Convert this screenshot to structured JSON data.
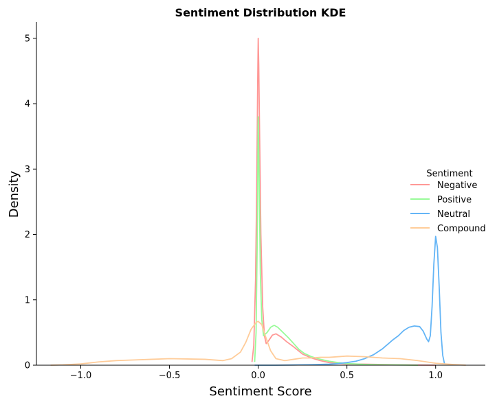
{
  "chart_data": {
    "type": "line",
    "title": "Sentiment Distribution KDE",
    "xlabel": "Sentiment Score",
    "ylabel": "Density",
    "xlim": [
      -1.25,
      1.28
    ],
    "ylim": [
      0,
      5.25
    ],
    "xticks": [
      -1.0,
      -0.5,
      0.0,
      0.5,
      1.0
    ],
    "xtick_labels": [
      "−1.0",
      "−0.5",
      "0.0",
      "0.5",
      "1.0"
    ],
    "yticks": [
      0,
      1,
      2,
      3,
      4,
      5
    ],
    "ytick_labels": [
      "0",
      "1",
      "2",
      "3",
      "4",
      "5"
    ],
    "grid": false,
    "legend": {
      "title": "Sentiment",
      "placement": "right"
    },
    "series": [
      {
        "name": "Negative",
        "color": "#ff9896",
        "points": [
          [
            -0.035,
            0.05
          ],
          [
            -0.025,
            0.3
          ],
          [
            -0.015,
            1.3
          ],
          [
            -0.008,
            2.8
          ],
          [
            -0.003,
            4.3
          ],
          [
            0.0,
            5.0
          ],
          [
            0.003,
            4.6
          ],
          [
            0.008,
            3.5
          ],
          [
            0.015,
            2.0
          ],
          [
            0.025,
            0.9
          ],
          [
            0.035,
            0.45
          ],
          [
            0.045,
            0.33
          ],
          [
            0.06,
            0.38
          ],
          [
            0.08,
            0.46
          ],
          [
            0.1,
            0.48
          ],
          [
            0.13,
            0.43
          ],
          [
            0.16,
            0.36
          ],
          [
            0.2,
            0.28
          ],
          [
            0.25,
            0.17
          ],
          [
            0.3,
            0.11
          ],
          [
            0.35,
            0.07
          ],
          [
            0.4,
            0.04
          ],
          [
            0.5,
            0.02
          ],
          [
            0.6,
            0.015
          ],
          [
            0.7,
            0.01
          ],
          [
            0.8,
            0.005
          ],
          [
            0.9,
            0.002
          ],
          [
            1.0,
            0.0
          ]
        ]
      },
      {
        "name": "Positive",
        "color": "#98fb98",
        "points": [
          [
            -0.02,
            0.05
          ],
          [
            -0.012,
            0.5
          ],
          [
            -0.005,
            2.0
          ],
          [
            0.0,
            3.8
          ],
          [
            0.005,
            2.9
          ],
          [
            0.012,
            1.4
          ],
          [
            0.02,
            0.7
          ],
          [
            0.03,
            0.45
          ],
          [
            0.05,
            0.5
          ],
          [
            0.07,
            0.58
          ],
          [
            0.09,
            0.61
          ],
          [
            0.11,
            0.58
          ],
          [
            0.14,
            0.5
          ],
          [
            0.17,
            0.42
          ],
          [
            0.2,
            0.33
          ],
          [
            0.23,
            0.24
          ],
          [
            0.26,
            0.18
          ],
          [
            0.3,
            0.13
          ],
          [
            0.35,
            0.09
          ],
          [
            0.4,
            0.06
          ],
          [
            0.45,
            0.04
          ],
          [
            0.5,
            0.025
          ],
          [
            0.6,
            0.012
          ],
          [
            0.7,
            0.006
          ],
          [
            0.8,
            0.003
          ],
          [
            0.9,
            0.0
          ]
        ]
      },
      {
        "name": "Neutral",
        "color": "#64b5f6",
        "points": [
          [
            -0.02,
            0.0
          ],
          [
            0.1,
            0.0
          ],
          [
            0.2,
            0.003
          ],
          [
            0.3,
            0.008
          ],
          [
            0.4,
            0.015
          ],
          [
            0.45,
            0.025
          ],
          [
            0.5,
            0.04
          ],
          [
            0.55,
            0.06
          ],
          [
            0.6,
            0.1
          ],
          [
            0.65,
            0.16
          ],
          [
            0.7,
            0.25
          ],
          [
            0.73,
            0.32
          ],
          [
            0.76,
            0.39
          ],
          [
            0.79,
            0.45
          ],
          [
            0.82,
            0.53
          ],
          [
            0.85,
            0.58
          ],
          [
            0.88,
            0.6
          ],
          [
            0.91,
            0.59
          ],
          [
            0.93,
            0.52
          ],
          [
            0.95,
            0.4
          ],
          [
            0.96,
            0.36
          ],
          [
            0.97,
            0.45
          ],
          [
            0.98,
            0.9
          ],
          [
            0.99,
            1.55
          ],
          [
            1.0,
            1.97
          ],
          [
            1.01,
            1.8
          ],
          [
            1.02,
            1.2
          ],
          [
            1.03,
            0.5
          ],
          [
            1.04,
            0.15
          ],
          [
            1.05,
            0.02
          ]
        ]
      },
      {
        "name": "Compound",
        "color": "#ffcc99",
        "points": [
          [
            -1.17,
            0.0
          ],
          [
            -1.1,
            0.005
          ],
          [
            -1.0,
            0.02
          ],
          [
            -0.9,
            0.05
          ],
          [
            -0.8,
            0.07
          ],
          [
            -0.7,
            0.08
          ],
          [
            -0.6,
            0.09
          ],
          [
            -0.5,
            0.1
          ],
          [
            -0.4,
            0.095
          ],
          [
            -0.3,
            0.09
          ],
          [
            -0.2,
            0.07
          ],
          [
            -0.15,
            0.1
          ],
          [
            -0.1,
            0.2
          ],
          [
            -0.07,
            0.35
          ],
          [
            -0.04,
            0.55
          ],
          [
            -0.01,
            0.66
          ],
          [
            0.0,
            0.67
          ],
          [
            0.02,
            0.62
          ],
          [
            0.04,
            0.45
          ],
          [
            0.07,
            0.22
          ],
          [
            0.1,
            0.1
          ],
          [
            0.15,
            0.07
          ],
          [
            0.2,
            0.09
          ],
          [
            0.25,
            0.11
          ],
          [
            0.3,
            0.11
          ],
          [
            0.35,
            0.12
          ],
          [
            0.4,
            0.12
          ],
          [
            0.5,
            0.14
          ],
          [
            0.6,
            0.13
          ],
          [
            0.7,
            0.11
          ],
          [
            0.8,
            0.1
          ],
          [
            0.9,
            0.07
          ],
          [
            1.0,
            0.03
          ],
          [
            1.1,
            0.01
          ],
          [
            1.17,
            0.0
          ]
        ]
      }
    ]
  }
}
